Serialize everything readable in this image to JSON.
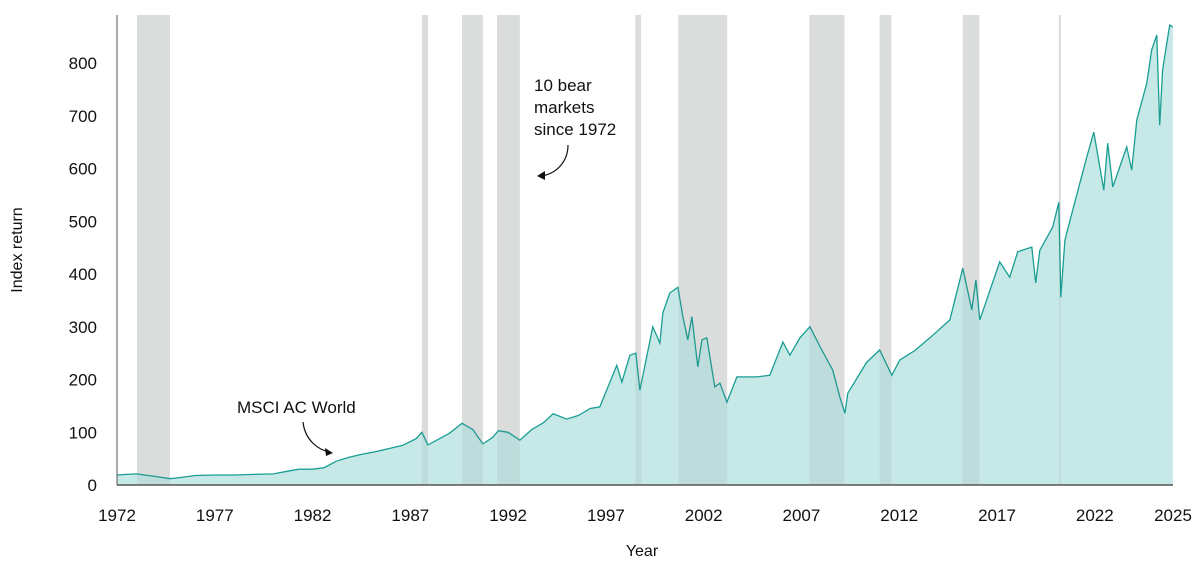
{
  "chart_data": {
    "type": "area",
    "title": "",
    "xlabel": "Year",
    "ylabel": "Index return",
    "xlim": [
      1972,
      2026
    ],
    "ylim": [
      0,
      890
    ],
    "xticks": [
      1972,
      1977,
      1982,
      1987,
      1992,
      1997,
      2002,
      2007,
      2012,
      2017,
      2022
    ],
    "x_end_label": "2025",
    "yticks": [
      0,
      100,
      200,
      300,
      400,
      500,
      600,
      700,
      800
    ],
    "grid": false,
    "colors": {
      "line": "#1a9e94",
      "fill": "#c6e8e6",
      "bear_band": "#e8e8e8",
      "axis": "#555555"
    },
    "series": [
      {
        "name": "MSCI AC World",
        "x": [
          1972.0,
          1972.5,
          1973.0,
          1973.6,
          1974.2,
          1974.7,
          1975.2,
          1976.0,
          1977.0,
          1978.0,
          1979.0,
          1980.0,
          1980.7,
          1981.3,
          1982.0,
          1982.6,
          1983.2,
          1983.8,
          1984.5,
          1985.2,
          1986.0,
          1986.6,
          1987.3,
          1987.59,
          1987.9,
          1988.5,
          1989.0,
          1989.64,
          1990.2,
          1990.71,
          1991.2,
          1991.5,
          1992.0,
          1992.6,
          1993.2,
          1993.8,
          1994.3,
          1995.0,
          1995.6,
          1996.2,
          1996.69,
          1997.56,
          1997.82,
          1998.23,
          1998.53,
          1998.74,
          1999.4,
          1999.76,
          1999.91,
          2000.27,
          2000.68,
          2000.94,
          2001.19,
          2001.4,
          2001.7,
          2001.91,
          2002.16,
          2002.57,
          2002.83,
          2003.19,
          2003.7,
          2004.72,
          2005.38,
          2006.05,
          2006.41,
          2006.92,
          2007.43,
          2008.04,
          2008.6,
          2008.96,
          2009.22,
          2009.37,
          2010.34,
          2011.0,
          2011.62,
          2012.03,
          2012.8,
          2013.6,
          2014.59,
          2015.25,
          2015.71,
          2015.92,
          2016.12,
          2017.14,
          2017.65,
          2018.06,
          2018.78,
          2018.98,
          2019.19,
          2019.85,
          2020.16,
          2020.26,
          2020.47,
          2020.87,
          2021.59,
          2021.95,
          2022.46,
          2022.66,
          2022.92,
          2023.63,
          2023.89,
          2024.15,
          2024.66,
          2024.91,
          2025.17,
          2025.32,
          2025.47,
          2025.83,
          2025.99
        ],
        "y": [
          19,
          20,
          21,
          18,
          15,
          12,
          14,
          18,
          19,
          19,
          20,
          21,
          26,
          30,
          30,
          33,
          45,
          52,
          58,
          63,
          70,
          75,
          88,
          100,
          76,
          88,
          98,
          117,
          105,
          78,
          90,
          103,
          100,
          85,
          105,
          118,
          135,
          125,
          132,
          145,
          148,
          227,
          195,
          246,
          250,
          180,
          300,
          269,
          326,
          364,
          375,
          319,
          275,
          319,
          224,
          275,
          279,
          186,
          193,
          157,
          205,
          205,
          208,
          271,
          246,
          279,
          300,
          256,
          218,
          167,
          136,
          174,
          233,
          256,
          208,
          237,
          255,
          280,
          313,
          411,
          332,
          389,
          313,
          423,
          394,
          442,
          451,
          383,
          445,
          489,
          536,
          356,
          464,
          521,
          622,
          669,
          559,
          648,
          565,
          641,
          597,
          692,
          762,
          825,
          853,
          682,
          787,
          872,
          868
        ]
      }
    ],
    "bear_markets": [
      [
        1973.02,
        1974.71
      ],
      [
        1987.59,
        1987.9
      ],
      [
        1989.64,
        1990.71
      ],
      [
        1991.43,
        1992.6
      ],
      [
        1998.5,
        1998.8
      ],
      [
        2000.7,
        2003.2
      ],
      [
        2007.4,
        2009.2
      ],
      [
        2011.0,
        2011.6
      ],
      [
        2015.25,
        2016.1
      ],
      [
        2020.16,
        2020.26
      ]
    ],
    "annotations": {
      "series_label": "MSCI AC World",
      "bear_lines": [
        "10 bear",
        "markets",
        "since 1972"
      ]
    }
  }
}
